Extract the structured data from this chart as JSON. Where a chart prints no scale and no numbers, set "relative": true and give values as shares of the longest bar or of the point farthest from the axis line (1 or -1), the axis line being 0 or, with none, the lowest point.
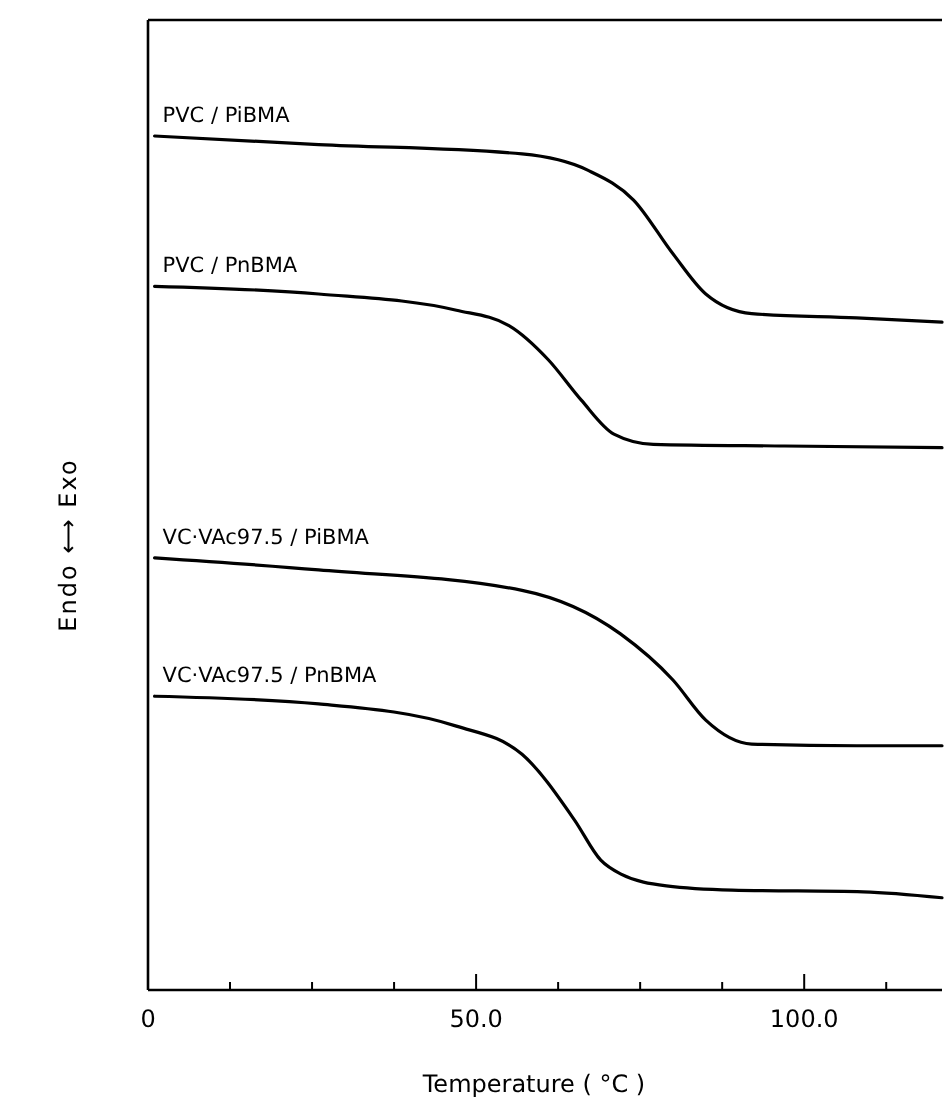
{
  "chart_data": {
    "type": "line",
    "relative": true,
    "xlabel": "Temperature ( °C )",
    "ylabel": "Endo ⟷ Exo",
    "xlim": [
      0,
      121
    ],
    "xticks": [
      0,
      {
        "value": 12.5,
        "label": null
      },
      {
        "value": 25,
        "label": null
      },
      {
        "value": 37.5,
        "label": null
      },
      {
        "value": 50,
        "label": "50.0"
      },
      {
        "value": 62.5,
        "label": null
      },
      {
        "value": 75,
        "label": null
      },
      {
        "value": 87.5,
        "label": null
      },
      {
        "value": 100,
        "label": "100.0"
      },
      {
        "value": 112.5,
        "label": null
      }
    ],
    "line_style": "solid",
    "marker": "none",
    "legend": false,
    "grid": false,
    "series": [
      {
        "name": "PVC / PiBMA",
        "color": "#000000",
        "x": [
          1,
          26,
          57,
          67,
          74,
          80,
          85,
          92,
          108,
          121
        ],
        "values": [
          1,
          0.99,
          0.979,
          0.96,
          0.925,
          0.862,
          0.815,
          0.792,
          0.787,
          0.782
        ]
      },
      {
        "name": "PVC / PnBMA",
        "color": "#000000",
        "x": [
          1,
          26,
          47,
          55,
          61,
          66,
          71,
          77,
          97,
          121
        ],
        "values": [
          0.824,
          0.815,
          0.796,
          0.778,
          0.738,
          0.691,
          0.651,
          0.639,
          0.637,
          0.635
        ]
      },
      {
        "name": "VC·VAc97.5 / PiBMA",
        "color": "#000000",
        "x": [
          1,
          26,
          57,
          72,
          80,
          85,
          92,
          108,
          121
        ],
        "values": [
          0.506,
          0.492,
          0.468,
          0.417,
          0.363,
          0.316,
          0.288,
          0.286,
          0.286
        ]
      },
      {
        "name": "VC·VAc97.5 / PnBMA",
        "color": "#000000",
        "x": [
          1,
          26,
          47,
          57,
          65,
          69,
          72,
          79,
          89,
          109,
          121
        ],
        "values": [
          0.344,
          0.335,
          0.309,
          0.276,
          0.199,
          0.152,
          0.136,
          0.122,
          0.117,
          0.115,
          0.108
        ]
      }
    ]
  }
}
